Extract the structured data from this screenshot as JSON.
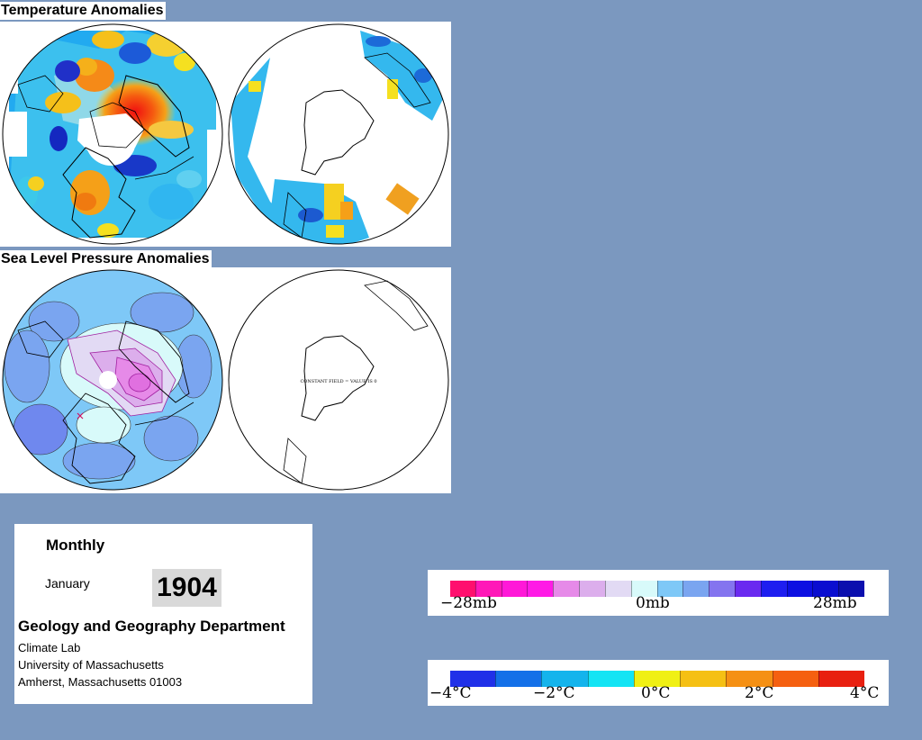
{
  "temperature": {
    "title": "Temperature Anomalies"
  },
  "pressure": {
    "title": "Sea Level Pressure Anomalies",
    "south_note": "CONSTANT FIELD = VALUE IS 0"
  },
  "info": {
    "heading": "Monthly",
    "month": "January",
    "year": "1904",
    "department": "Geology and Geography Department",
    "lab": "Climate Lab",
    "university": "University of Massachusetts",
    "address": "Amherst, Massachusetts 01003"
  },
  "pressure_legend": {
    "labels": [
      "−28mb",
      "0mb",
      "28mb"
    ],
    "colors": [
      "#ff0f6e",
      "#ff18b8",
      "#ff18d8",
      "#ff1ae6",
      "#e68ae8",
      "#dcaeec",
      "#e2daf4",
      "#d8fafa",
      "#7ec8f7",
      "#7aa5f0",
      "#8474ef",
      "#6a2af0",
      "#1e1ef0",
      "#0d10e2",
      "#0a0ed0",
      "#0b0fae"
    ]
  },
  "temperature_legend": {
    "labels": [
      "−4°C",
      "−2°C",
      "0°C",
      "2°C",
      "4°C"
    ],
    "colors": [
      "#2030e8",
      "#1370e8",
      "#14b4ec",
      "#14e4f4",
      "#f0f014",
      "#f5c014",
      "#f59014",
      "#f56010",
      "#e82010"
    ]
  }
}
